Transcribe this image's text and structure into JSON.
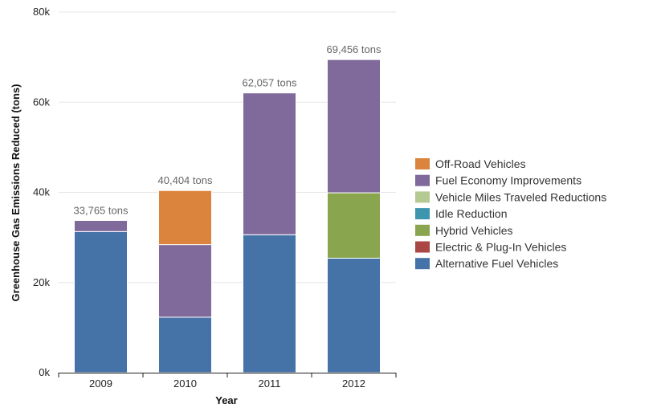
{
  "chart_data": {
    "type": "bar",
    "stacked": true,
    "title": "",
    "xlabel": "Year",
    "ylabel": "Greenhouse Gas Emissions Reduced (tons)",
    "categories": [
      "2009",
      "2010",
      "2011",
      "2012"
    ],
    "ylim": [
      0,
      80000
    ],
    "yticks": [
      0,
      20000,
      40000,
      60000,
      80000
    ],
    "ytick_labels": [
      "0k",
      "20k",
      "40k",
      "60k",
      "80k"
    ],
    "grid": true,
    "legend_position": "right",
    "series": [
      {
        "name": "Alternative Fuel Vehicles",
        "color": "#4572A7",
        "values": [
          31300,
          12300,
          30600,
          25400
        ]
      },
      {
        "name": "Electric & Plug-In Vehicles",
        "color": "#AA4643",
        "values": [
          0,
          0,
          0,
          0
        ]
      },
      {
        "name": "Hybrid Vehicles",
        "color": "#89A54E",
        "values": [
          0,
          0,
          0,
          14500
        ]
      },
      {
        "name": "Idle Reduction",
        "color": "#3D96AE",
        "values": [
          0,
          0,
          0,
          0
        ]
      },
      {
        "name": "Vehicle Miles Traveled Reductions",
        "color": "#B5CA92",
        "values": [
          0,
          0,
          0,
          0
        ]
      },
      {
        "name": "Fuel Economy Improvements",
        "color": "#80699B",
        "values": [
          2465,
          16100,
          31457,
          29556
        ]
      },
      {
        "name": "Off-Road Vehicles",
        "color": "#DB843D",
        "values": [
          0,
          12004,
          0,
          0
        ]
      }
    ],
    "totals": [
      33765,
      40404,
      62057,
      69456
    ],
    "total_labels": [
      "33,765 tons",
      "40,404 tons",
      "62,057 tons",
      "69,456 tons"
    ],
    "legend_order": [
      "Off-Road Vehicles",
      "Fuel Economy Improvements",
      "Vehicle Miles Traveled Reductions",
      "Idle Reduction",
      "Hybrid Vehicles",
      "Electric & Plug-In Vehicles",
      "Alternative Fuel Vehicles"
    ]
  }
}
